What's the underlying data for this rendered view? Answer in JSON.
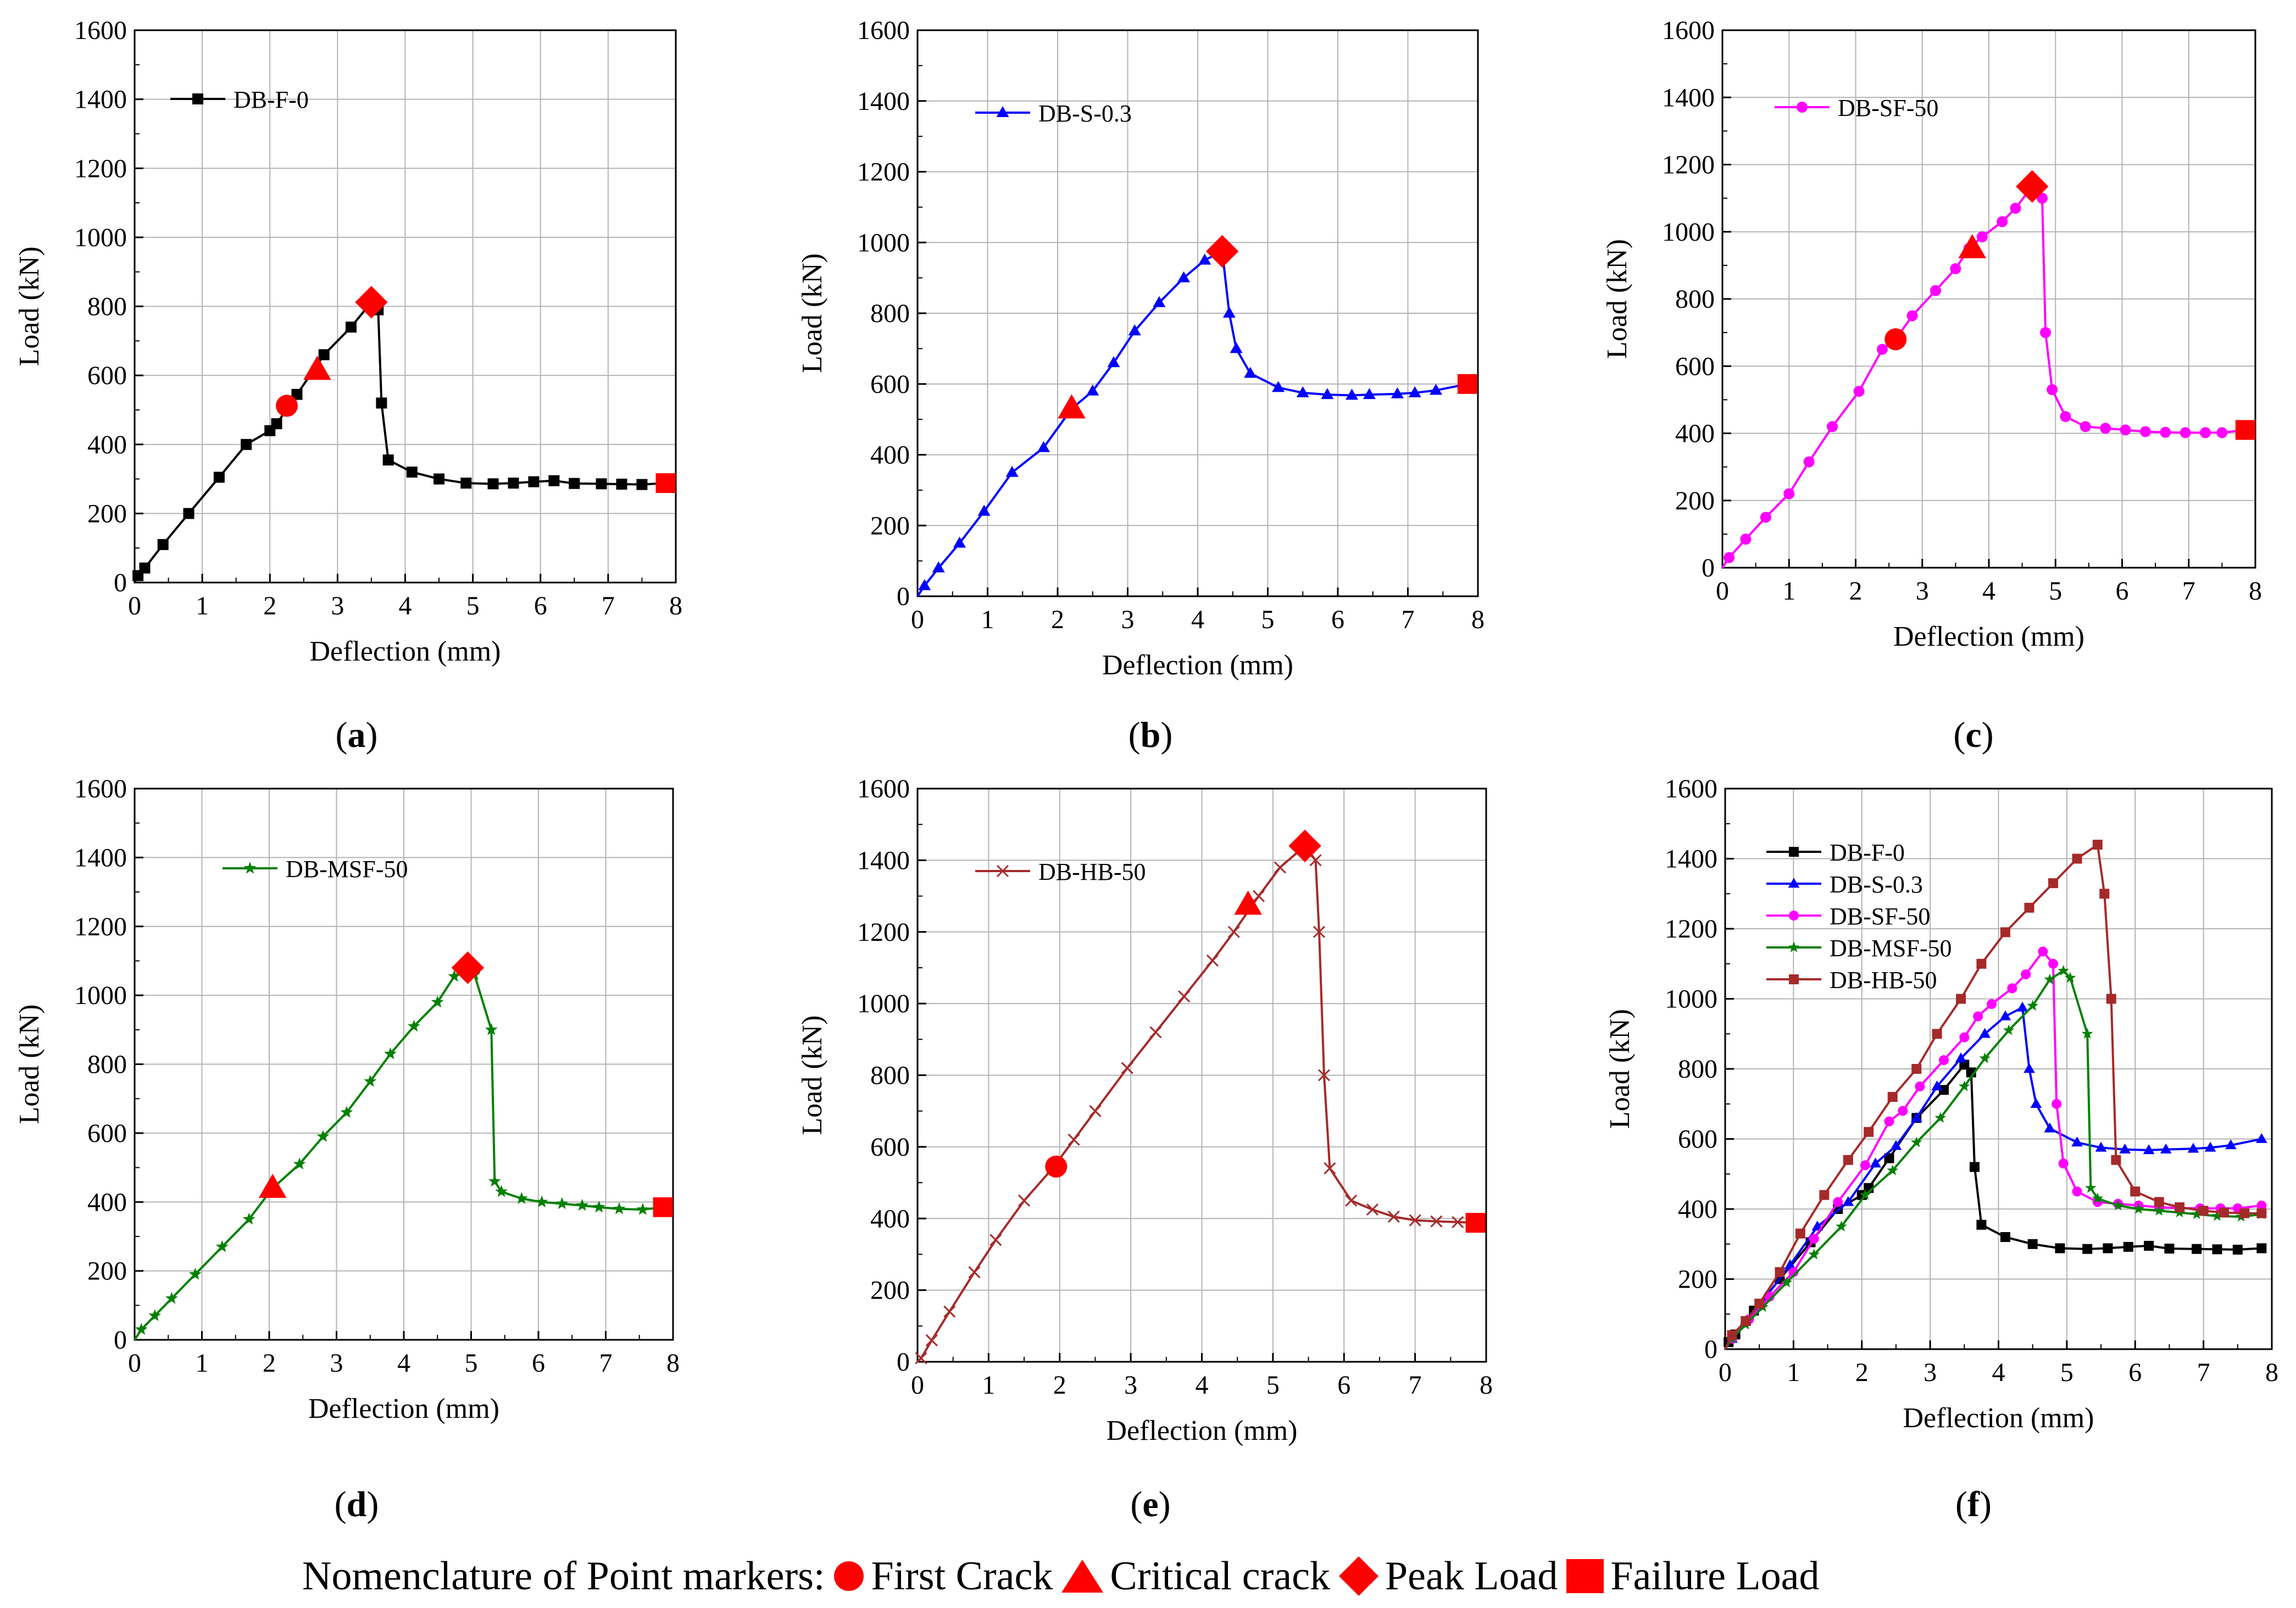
{
  "figure": {
    "nomenclature_prefix": "Nomenclature of Point markers:",
    "marker_legend": [
      {
        "shape": "circle",
        "label": "First Crack"
      },
      {
        "shape": "triangle",
        "label": "Critical crack"
      },
      {
        "shape": "diamond",
        "label": "Peak Load"
      },
      {
        "shape": "square",
        "label": "Failure Load"
      }
    ],
    "marker_color": "#ff0000"
  },
  "chart_data": [
    {
      "type": "line",
      "panel": "(a)",
      "panel_letter": "a",
      "xlabel": "Deflection (mm)",
      "ylabel": "Load (kN)",
      "xlim": [
        0,
        8
      ],
      "ylim": [
        0,
        1600
      ],
      "xticks": [
        0,
        1,
        2,
        3,
        4,
        5,
        6,
        7,
        8
      ],
      "yticks": [
        0,
        200,
        400,
        600,
        800,
        1000,
        1200,
        1400,
        1600
      ],
      "grid": true,
      "series": [
        {
          "name": "DB-F-0",
          "color": "#000000",
          "marker": "square",
          "x": [
            0,
            0.05,
            0.15,
            0.42,
            0.8,
            1.25,
            1.65,
            2.0,
            2.1,
            2.4,
            2.8,
            3.2,
            3.5,
            3.6,
            3.65,
            3.75,
            4.1,
            4.5,
            4.9,
            5.3,
            5.6,
            5.9,
            6.2,
            6.5,
            6.9,
            7.2,
            7.5,
            7.85
          ],
          "y": [
            0,
            20,
            42,
            110,
            200,
            305,
            400,
            440,
            460,
            545,
            660,
            740,
            812,
            790,
            520,
            355,
            320,
            300,
            288,
            286,
            288,
            292,
            295,
            287,
            286,
            285,
            284,
            288
          ]
        }
      ],
      "points": {
        "first_crack": [
          2.25,
          512
        ],
        "critical_crack": [
          2.7,
          615
        ],
        "peak_load": [
          3.5,
          812
        ],
        "failure_load": [
          7.85,
          288
        ]
      }
    },
    {
      "type": "line",
      "panel": "(b)",
      "panel_letter": "b",
      "xlabel": "Deflection (mm)",
      "ylabel": "Load (kN)",
      "xlim": [
        0,
        8
      ],
      "ylim": [
        0,
        1600
      ],
      "xticks": [
        0,
        1,
        2,
        3,
        4,
        5,
        6,
        7,
        8
      ],
      "yticks": [
        0,
        200,
        400,
        600,
        800,
        1000,
        1200,
        1400,
        1600
      ],
      "grid": true,
      "series": [
        {
          "name": "DB-S-0.3",
          "color": "#0000ff",
          "marker": "triangle",
          "x": [
            0,
            0.1,
            0.3,
            0.6,
            0.95,
            1.35,
            1.8,
            2.2,
            2.5,
            2.8,
            3.1,
            3.45,
            3.8,
            4.1,
            4.35,
            4.45,
            4.55,
            4.75,
            5.15,
            5.5,
            5.85,
            6.2,
            6.45,
            6.85,
            7.1,
            7.4,
            7.85
          ],
          "y": [
            0,
            30,
            80,
            150,
            240,
            350,
            420,
            530,
            580,
            660,
            750,
            830,
            900,
            950,
            975,
            800,
            700,
            630,
            590,
            575,
            570,
            568,
            570,
            572,
            575,
            582,
            600
          ]
        }
      ],
      "points": {
        "first_crack": null,
        "critical_crack": [
          2.2,
          530
        ],
        "peak_load": [
          4.35,
          975
        ],
        "failure_load": [
          7.85,
          600
        ]
      }
    },
    {
      "type": "line",
      "panel": "(c)",
      "panel_letter": "c",
      "xlabel": "Deflection (mm)",
      "ylabel": "Load (kN)",
      "xlim": [
        0,
        8
      ],
      "ylim": [
        0,
        1600
      ],
      "xticks": [
        0,
        1,
        2,
        3,
        4,
        5,
        6,
        7,
        8
      ],
      "yticks": [
        0,
        200,
        400,
        600,
        800,
        1000,
        1200,
        1400,
        1600
      ],
      "grid": true,
      "series": [
        {
          "name": "DB-SF-50",
          "color": "#ff00ff",
          "marker": "circle",
          "x": [
            0,
            0.1,
            0.35,
            0.65,
            1.0,
            1.3,
            1.65,
            2.05,
            2.4,
            2.6,
            2.85,
            3.2,
            3.5,
            3.7,
            3.9,
            4.2,
            4.4,
            4.65,
            4.8,
            4.85,
            4.95,
            5.15,
            5.45,
            5.75,
            6.05,
            6.35,
            6.65,
            6.95,
            7.25,
            7.5,
            7.85
          ],
          "y": [
            0,
            30,
            85,
            150,
            220,
            315,
            420,
            525,
            650,
            680,
            750,
            825,
            890,
            950,
            985,
            1030,
            1070,
            1135,
            1100,
            700,
            530,
            450,
            420,
            415,
            410,
            405,
            403,
            402,
            402,
            402,
            410
          ]
        }
      ],
      "points": {
        "first_crack": [
          2.6,
          680
        ],
        "critical_crack": [
          3.75,
          950
        ],
        "peak_load": [
          4.65,
          1135
        ],
        "failure_load": [
          7.85,
          410
        ]
      }
    },
    {
      "type": "line",
      "panel": "(d)",
      "panel_letter": "d",
      "xlabel": "Deflection (mm)",
      "ylabel": "Load (kN)",
      "xlim": [
        0,
        8
      ],
      "ylim": [
        0,
        1600
      ],
      "xticks": [
        0,
        1,
        2,
        3,
        4,
        5,
        6,
        7,
        8
      ],
      "yticks": [
        0,
        200,
        400,
        600,
        800,
        1000,
        1200,
        1400,
        1600
      ],
      "grid": true,
      "series": [
        {
          "name": "DB-MSF-50",
          "color": "#008000",
          "marker": "star",
          "x": [
            0,
            0.1,
            0.3,
            0.55,
            0.9,
            1.3,
            1.7,
            2.05,
            2.45,
            2.8,
            3.15,
            3.5,
            3.8,
            4.15,
            4.5,
            4.75,
            4.95,
            5.05,
            5.3,
            5.35,
            5.45,
            5.75,
            6.05,
            6.35,
            6.65,
            6.9,
            7.2,
            7.55,
            7.85
          ],
          "y": [
            0,
            30,
            70,
            120,
            190,
            270,
            350,
            440,
            510,
            590,
            660,
            750,
            830,
            910,
            980,
            1055,
            1080,
            1060,
            900,
            460,
            430,
            410,
            400,
            395,
            390,
            385,
            380,
            378,
            385
          ]
        }
      ],
      "points": {
        "first_crack": null,
        "critical_crack": [
          2.05,
          440
        ],
        "peak_load": [
          4.95,
          1080
        ],
        "failure_load": [
          7.85,
          385
        ]
      }
    },
    {
      "type": "line",
      "panel": "(e)",
      "panel_letter": "e",
      "xlabel": "Deflection (mm)",
      "ylabel": "Load (kN)",
      "xlim": [
        0,
        8
      ],
      "ylim": [
        0,
        1600
      ],
      "xticks": [
        0,
        1,
        2,
        3,
        4,
        5,
        6,
        7,
        8
      ],
      "yticks": [
        0,
        200,
        400,
        600,
        800,
        1000,
        1200,
        1400,
        1600
      ],
      "grid": true,
      "series": [
        {
          "name": "DB-HB-50",
          "color": "#a52a2a",
          "marker": "x",
          "x": [
            0,
            0.05,
            0.2,
            0.45,
            0.8,
            1.1,
            1.5,
            1.9,
            2.2,
            2.5,
            2.95,
            3.35,
            3.75,
            4.15,
            4.45,
            4.8,
            5.1,
            5.45,
            5.6,
            5.65,
            5.72,
            5.8,
            6.1,
            6.4,
            6.7,
            7.0,
            7.3,
            7.6,
            7.85
          ],
          "y": [
            0,
            10,
            60,
            140,
            250,
            340,
            450,
            540,
            620,
            700,
            820,
            920,
            1020,
            1120,
            1200,
            1300,
            1380,
            1440,
            1400,
            1200,
            800,
            540,
            450,
            425,
            405,
            395,
            392,
            390,
            388
          ]
        }
      ],
      "points": {
        "first_crack": [
          1.95,
          545
        ],
        "critical_crack": [
          4.65,
          1275
        ],
        "peak_load": [
          5.45,
          1440
        ],
        "failure_load": [
          7.85,
          388
        ]
      }
    },
    {
      "type": "line",
      "panel": "(f)",
      "panel_letter": "f",
      "xlabel": "Deflection (mm)",
      "ylabel": "Load (kN)",
      "xlim": [
        0,
        8
      ],
      "ylim": [
        0,
        1600
      ],
      "xticks": [
        0,
        1,
        2,
        3,
        4,
        5,
        6,
        7,
        8
      ],
      "yticks": [
        0,
        200,
        400,
        600,
        800,
        1000,
        1200,
        1400,
        1600
      ],
      "grid": true,
      "series": [
        {
          "name": "DB-F-0",
          "color": "#000000",
          "marker": "square",
          "x": [
            0,
            0.05,
            0.15,
            0.42,
            0.8,
            1.25,
            1.65,
            2.0,
            2.1,
            2.4,
            2.8,
            3.2,
            3.5,
            3.6,
            3.65,
            3.75,
            4.1,
            4.5,
            4.9,
            5.3,
            5.6,
            5.9,
            6.2,
            6.5,
            6.9,
            7.2,
            7.5,
            7.85
          ],
          "y": [
            0,
            20,
            42,
            110,
            200,
            305,
            400,
            440,
            460,
            545,
            660,
            740,
            812,
            790,
            520,
            355,
            320,
            300,
            288,
            286,
            288,
            292,
            295,
            287,
            286,
            285,
            284,
            288
          ]
        },
        {
          "name": "DB-S-0.3",
          "color": "#0000ff",
          "marker": "triangle",
          "x": [
            0,
            0.1,
            0.3,
            0.6,
            0.95,
            1.35,
            1.8,
            2.2,
            2.5,
            2.8,
            3.1,
            3.45,
            3.8,
            4.1,
            4.35,
            4.45,
            4.55,
            4.75,
            5.15,
            5.5,
            5.85,
            6.2,
            6.45,
            6.85,
            7.1,
            7.4,
            7.85
          ],
          "y": [
            0,
            30,
            80,
            150,
            240,
            350,
            420,
            530,
            580,
            660,
            750,
            830,
            900,
            950,
            975,
            800,
            700,
            630,
            590,
            575,
            570,
            568,
            570,
            572,
            575,
            582,
            600
          ]
        },
        {
          "name": "DB-SF-50",
          "color": "#ff00ff",
          "marker": "circle",
          "x": [
            0,
            0.1,
            0.35,
            0.65,
            1.0,
            1.3,
            1.65,
            2.05,
            2.4,
            2.6,
            2.85,
            3.2,
            3.5,
            3.7,
            3.9,
            4.2,
            4.4,
            4.65,
            4.8,
            4.85,
            4.95,
            5.15,
            5.45,
            5.75,
            6.05,
            6.35,
            6.65,
            6.95,
            7.25,
            7.5,
            7.85
          ],
          "y": [
            0,
            30,
            85,
            150,
            220,
            315,
            420,
            525,
            650,
            680,
            750,
            825,
            890,
            950,
            985,
            1030,
            1070,
            1135,
            1100,
            700,
            530,
            450,
            420,
            415,
            410,
            405,
            403,
            402,
            402,
            402,
            410
          ]
        },
        {
          "name": "DB-MSF-50",
          "color": "#008000",
          "marker": "star",
          "x": [
            0,
            0.1,
            0.3,
            0.55,
            0.9,
            1.3,
            1.7,
            2.05,
            2.45,
            2.8,
            3.15,
            3.5,
            3.8,
            4.15,
            4.5,
            4.75,
            4.95,
            5.05,
            5.3,
            5.35,
            5.45,
            5.75,
            6.05,
            6.35,
            6.65,
            6.9,
            7.2,
            7.55,
            7.85
          ],
          "y": [
            0,
            30,
            70,
            120,
            190,
            270,
            350,
            440,
            510,
            590,
            660,
            750,
            830,
            910,
            980,
            1055,
            1080,
            1060,
            900,
            460,
            430,
            410,
            400,
            395,
            390,
            385,
            380,
            378,
            385
          ]
        },
        {
          "name": "DB-HB-50",
          "color": "#a52a2a",
          "marker": "square",
          "x": [
            0,
            0.1,
            0.3,
            0.5,
            0.8,
            1.1,
            1.45,
            1.8,
            2.1,
            2.45,
            2.8,
            3.1,
            3.45,
            3.75,
            4.1,
            4.45,
            4.8,
            5.15,
            5.45,
            5.55,
            5.65,
            5.72,
            6.0,
            6.35,
            6.65,
            7.0,
            7.3,
            7.6,
            7.85
          ],
          "y": [
            0,
            40,
            80,
            130,
            220,
            330,
            440,
            540,
            620,
            720,
            800,
            900,
            1000,
            1100,
            1190,
            1260,
            1330,
            1400,
            1440,
            1300,
            1000,
            540,
            450,
            420,
            405,
            395,
            390,
            388,
            388
          ]
        }
      ],
      "points": null
    }
  ]
}
